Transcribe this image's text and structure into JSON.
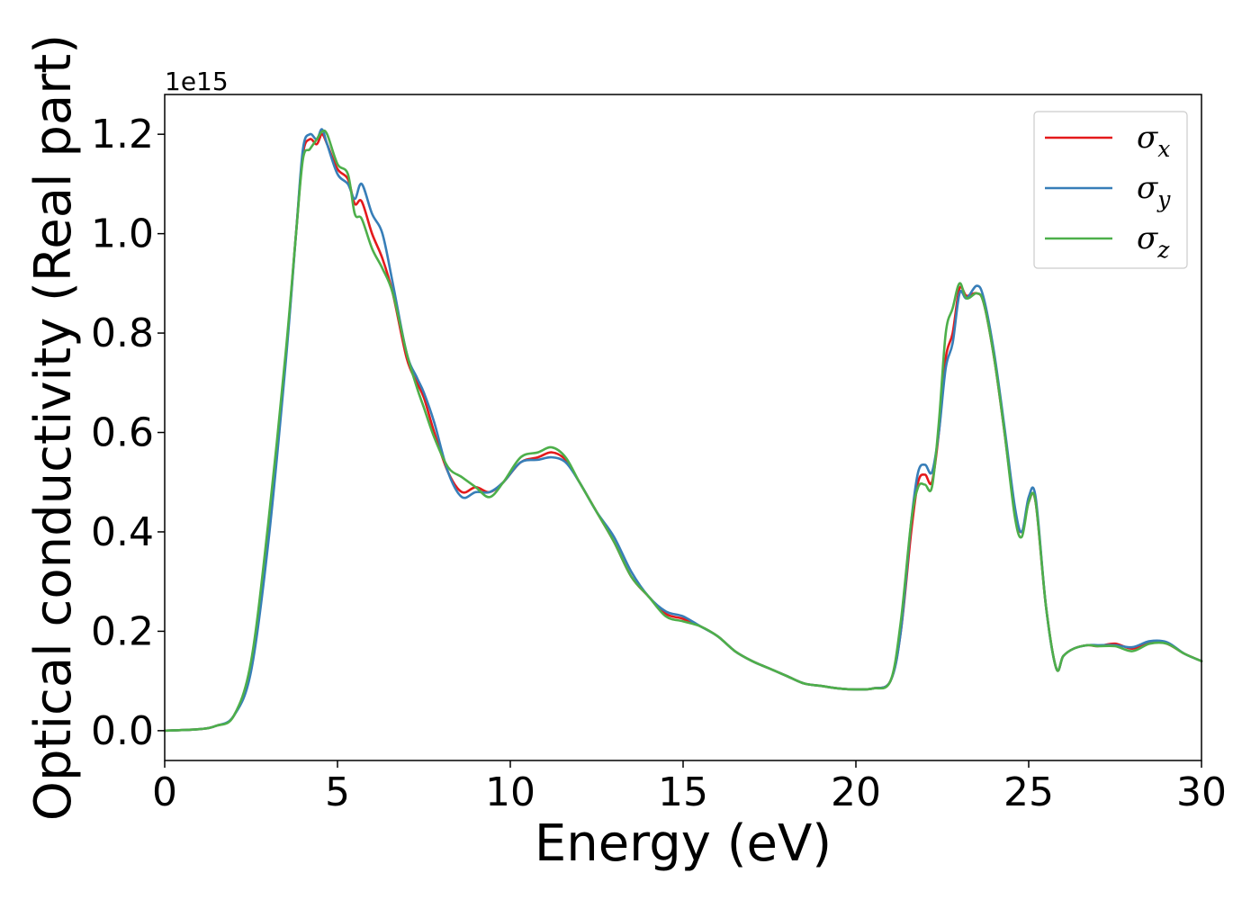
{
  "chart_data": {
    "type": "line",
    "xlabel": "Energy (eV)",
    "ylabel": "Optical conductivity (Real part)",
    "y_offset_text": "1e15",
    "xlim": [
      0,
      30
    ],
    "ylim": [
      -0.06,
      1.28
    ],
    "x_ticks": [
      0,
      5,
      10,
      15,
      20,
      25,
      30
    ],
    "y_ticks": [
      0.0,
      0.2,
      0.4,
      0.6,
      0.8,
      1.0,
      1.2
    ],
    "x_tick_labels": [
      "0",
      "5",
      "10",
      "15",
      "20",
      "25",
      "30"
    ],
    "y_tick_labels": [
      "0.0",
      "0.2",
      "0.4",
      "0.6",
      "0.8",
      "1.0",
      "1.2"
    ],
    "grid": false,
    "legend_position": "top-right",
    "series": [
      {
        "name": "σx",
        "symbol": "σ",
        "subscript": "x",
        "color": "#e41a1c",
        "points": [
          [
            0,
            0
          ],
          [
            1,
            0.003
          ],
          [
            1.5,
            0.01
          ],
          [
            2,
            0.03
          ],
          [
            2.5,
            0.13
          ],
          [
            3,
            0.4
          ],
          [
            3.5,
            0.75
          ],
          [
            3.8,
            1.0
          ],
          [
            4,
            1.16
          ],
          [
            4.2,
            1.19
          ],
          [
            4.4,
            1.18
          ],
          [
            4.55,
            1.2
          ],
          [
            4.7,
            1.18
          ],
          [
            5,
            1.13
          ],
          [
            5.3,
            1.11
          ],
          [
            5.5,
            1.06
          ],
          [
            5.7,
            1.065
          ],
          [
            6,
            1.0
          ],
          [
            6.3,
            0.95
          ],
          [
            6.6,
            0.88
          ],
          [
            7,
            0.75
          ],
          [
            7.3,
            0.7
          ],
          [
            7.5,
            0.67
          ],
          [
            7.8,
            0.6
          ],
          [
            8.2,
            0.52
          ],
          [
            8.6,
            0.48
          ],
          [
            9,
            0.49
          ],
          [
            9.4,
            0.48
          ],
          [
            9.8,
            0.5
          ],
          [
            10.3,
            0.54
          ],
          [
            10.8,
            0.55
          ],
          [
            11.2,
            0.56
          ],
          [
            11.6,
            0.545
          ],
          [
            12,
            0.5
          ],
          [
            12.5,
            0.44
          ],
          [
            13,
            0.38
          ],
          [
            13.5,
            0.31
          ],
          [
            14,
            0.27
          ],
          [
            14.5,
            0.235
          ],
          [
            15,
            0.225
          ],
          [
            15.5,
            0.21
          ],
          [
            16,
            0.19
          ],
          [
            16.5,
            0.16
          ],
          [
            17,
            0.14
          ],
          [
            17.5,
            0.125
          ],
          [
            18,
            0.11
          ],
          [
            18.5,
            0.095
          ],
          [
            19,
            0.09
          ],
          [
            19.5,
            0.085
          ],
          [
            20,
            0.083
          ],
          [
            20.5,
            0.085
          ],
          [
            21,
            0.1
          ],
          [
            21.3,
            0.2
          ],
          [
            21.6,
            0.4
          ],
          [
            21.8,
            0.5
          ],
          [
            22,
            0.515
          ],
          [
            22.2,
            0.5
          ],
          [
            22.4,
            0.6
          ],
          [
            22.6,
            0.75
          ],
          [
            22.8,
            0.8
          ],
          [
            23,
            0.89
          ],
          [
            23.2,
            0.875
          ],
          [
            23.5,
            0.88
          ],
          [
            23.7,
            0.86
          ],
          [
            24,
            0.75
          ],
          [
            24.3,
            0.6
          ],
          [
            24.6,
            0.44
          ],
          [
            24.8,
            0.4
          ],
          [
            25,
            0.46
          ],
          [
            25.2,
            0.46
          ],
          [
            25.5,
            0.25
          ],
          [
            25.8,
            0.125
          ],
          [
            26,
            0.15
          ],
          [
            26.3,
            0.165
          ],
          [
            26.7,
            0.172
          ],
          [
            27,
            0.17
          ],
          [
            27.5,
            0.175
          ],
          [
            28,
            0.165
          ],
          [
            28.5,
            0.178
          ],
          [
            29,
            0.175
          ],
          [
            29.5,
            0.155
          ],
          [
            30,
            0.14
          ]
        ]
      },
      {
        "name": "σy",
        "symbol": "σ",
        "subscript": "y",
        "color": "#377eb8",
        "points": [
          [
            0,
            0
          ],
          [
            1,
            0.003
          ],
          [
            1.5,
            0.01
          ],
          [
            2,
            0.03
          ],
          [
            2.5,
            0.12
          ],
          [
            3,
            0.38
          ],
          [
            3.5,
            0.74
          ],
          [
            3.8,
            1.0
          ],
          [
            4,
            1.17
          ],
          [
            4.2,
            1.2
          ],
          [
            4.4,
            1.19
          ],
          [
            4.55,
            1.21
          ],
          [
            4.7,
            1.18
          ],
          [
            5,
            1.12
          ],
          [
            5.3,
            1.1
          ],
          [
            5.5,
            1.07
          ],
          [
            5.7,
            1.1
          ],
          [
            6,
            1.04
          ],
          [
            6.3,
            1.0
          ],
          [
            6.6,
            0.9
          ],
          [
            7,
            0.76
          ],
          [
            7.3,
            0.71
          ],
          [
            7.5,
            0.68
          ],
          [
            7.8,
            0.62
          ],
          [
            8.2,
            0.52
          ],
          [
            8.6,
            0.47
          ],
          [
            9,
            0.48
          ],
          [
            9.4,
            0.48
          ],
          [
            9.8,
            0.5
          ],
          [
            10.3,
            0.54
          ],
          [
            10.8,
            0.545
          ],
          [
            11.2,
            0.55
          ],
          [
            11.6,
            0.54
          ],
          [
            12,
            0.5
          ],
          [
            12.5,
            0.44
          ],
          [
            13,
            0.39
          ],
          [
            13.5,
            0.32
          ],
          [
            14,
            0.27
          ],
          [
            14.5,
            0.24
          ],
          [
            15,
            0.23
          ],
          [
            15.5,
            0.21
          ],
          [
            16,
            0.19
          ],
          [
            16.5,
            0.16
          ],
          [
            17,
            0.14
          ],
          [
            17.5,
            0.125
          ],
          [
            18,
            0.11
          ],
          [
            18.5,
            0.095
          ],
          [
            19,
            0.09
          ],
          [
            19.5,
            0.085
          ],
          [
            20,
            0.083
          ],
          [
            20.5,
            0.085
          ],
          [
            21,
            0.1
          ],
          [
            21.3,
            0.2
          ],
          [
            21.6,
            0.42
          ],
          [
            21.8,
            0.52
          ],
          [
            22,
            0.535
          ],
          [
            22.2,
            0.52
          ],
          [
            22.4,
            0.6
          ],
          [
            22.6,
            0.73
          ],
          [
            22.8,
            0.78
          ],
          [
            23,
            0.88
          ],
          [
            23.2,
            0.87
          ],
          [
            23.5,
            0.895
          ],
          [
            23.7,
            0.87
          ],
          [
            24,
            0.76
          ],
          [
            24.3,
            0.61
          ],
          [
            24.6,
            0.45
          ],
          [
            24.8,
            0.4
          ],
          [
            25,
            0.47
          ],
          [
            25.2,
            0.47
          ],
          [
            25.5,
            0.25
          ],
          [
            25.8,
            0.125
          ],
          [
            26,
            0.15
          ],
          [
            26.3,
            0.165
          ],
          [
            26.7,
            0.172
          ],
          [
            27,
            0.172
          ],
          [
            27.5,
            0.172
          ],
          [
            28,
            0.168
          ],
          [
            28.5,
            0.18
          ],
          [
            29,
            0.178
          ],
          [
            29.5,
            0.155
          ],
          [
            30,
            0.14
          ]
        ]
      },
      {
        "name": "σz",
        "symbol": "σ",
        "subscript": "z",
        "color": "#4daf4a",
        "points": [
          [
            0,
            0
          ],
          [
            1,
            0.003
          ],
          [
            1.5,
            0.01
          ],
          [
            2,
            0.03
          ],
          [
            2.5,
            0.14
          ],
          [
            3,
            0.42
          ],
          [
            3.5,
            0.76
          ],
          [
            3.8,
            1.0
          ],
          [
            4,
            1.15
          ],
          [
            4.2,
            1.17
          ],
          [
            4.4,
            1.19
          ],
          [
            4.55,
            1.205
          ],
          [
            4.7,
            1.2
          ],
          [
            5,
            1.14
          ],
          [
            5.3,
            1.12
          ],
          [
            5.5,
            1.04
          ],
          [
            5.7,
            1.03
          ],
          [
            6,
            0.97
          ],
          [
            6.3,
            0.93
          ],
          [
            6.6,
            0.88
          ],
          [
            7,
            0.76
          ],
          [
            7.3,
            0.69
          ],
          [
            7.5,
            0.65
          ],
          [
            7.8,
            0.59
          ],
          [
            8.2,
            0.53
          ],
          [
            8.6,
            0.51
          ],
          [
            9,
            0.49
          ],
          [
            9.4,
            0.47
          ],
          [
            9.8,
            0.5
          ],
          [
            10.3,
            0.55
          ],
          [
            10.8,
            0.56
          ],
          [
            11.2,
            0.57
          ],
          [
            11.6,
            0.55
          ],
          [
            12,
            0.5
          ],
          [
            12.5,
            0.44
          ],
          [
            13,
            0.38
          ],
          [
            13.5,
            0.31
          ],
          [
            14,
            0.27
          ],
          [
            14.5,
            0.23
          ],
          [
            15,
            0.22
          ],
          [
            15.5,
            0.21
          ],
          [
            16,
            0.19
          ],
          [
            16.5,
            0.16
          ],
          [
            17,
            0.14
          ],
          [
            17.5,
            0.125
          ],
          [
            18,
            0.11
          ],
          [
            18.5,
            0.095
          ],
          [
            19,
            0.09
          ],
          [
            19.5,
            0.085
          ],
          [
            20,
            0.083
          ],
          [
            20.5,
            0.085
          ],
          [
            21,
            0.1
          ],
          [
            21.3,
            0.22
          ],
          [
            21.6,
            0.42
          ],
          [
            21.8,
            0.49
          ],
          [
            22,
            0.495
          ],
          [
            22.2,
            0.49
          ],
          [
            22.4,
            0.62
          ],
          [
            22.6,
            0.8
          ],
          [
            22.8,
            0.85
          ],
          [
            23,
            0.9
          ],
          [
            23.2,
            0.87
          ],
          [
            23.5,
            0.88
          ],
          [
            23.7,
            0.86
          ],
          [
            24,
            0.75
          ],
          [
            24.3,
            0.6
          ],
          [
            24.6,
            0.43
          ],
          [
            24.8,
            0.39
          ],
          [
            25,
            0.46
          ],
          [
            25.2,
            0.46
          ],
          [
            25.5,
            0.25
          ],
          [
            25.8,
            0.125
          ],
          [
            26,
            0.15
          ],
          [
            26.3,
            0.165
          ],
          [
            26.7,
            0.172
          ],
          [
            27,
            0.17
          ],
          [
            27.5,
            0.17
          ],
          [
            28,
            0.16
          ],
          [
            28.5,
            0.175
          ],
          [
            29,
            0.175
          ],
          [
            29.5,
            0.155
          ],
          [
            30,
            0.14
          ]
        ]
      }
    ]
  }
}
